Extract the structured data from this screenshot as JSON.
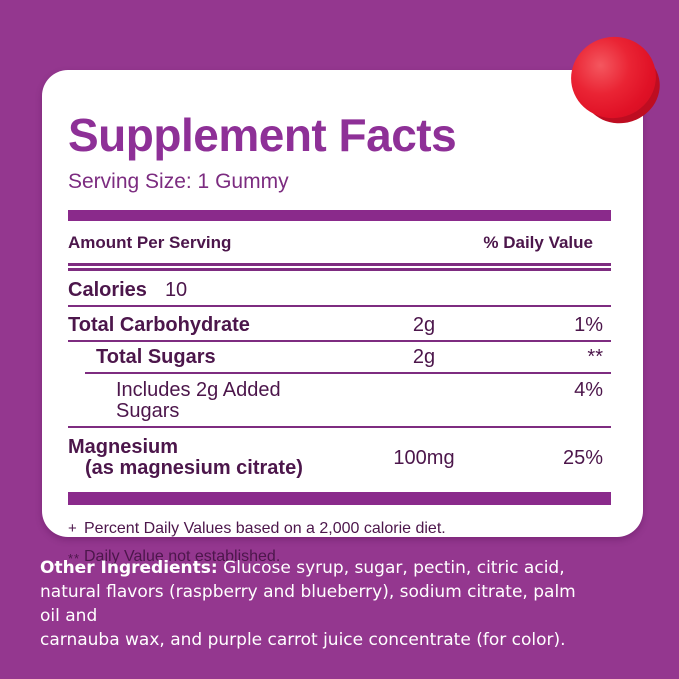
{
  "colors": {
    "background": "#94378F",
    "accent_bar": "#8A2A8B",
    "rule_line": "#7E2C80",
    "title": "#8E3097",
    "text_dark": "#4C164B",
    "card": "#FFFFFF",
    "gummy_red": "#E01126"
  },
  "panel": {
    "title": "Supplement Facts",
    "serving_size": "Serving Size: 1 Gummy",
    "header": {
      "amount": "Amount Per Serving",
      "daily_value": "% Daily Value"
    },
    "calories": {
      "label": "Calories",
      "value": "10"
    },
    "rows": [
      {
        "name": "Total Carbohydrate",
        "amount": "2g",
        "dv": "1%"
      },
      {
        "name": "Total Sugars",
        "amount": "2g",
        "dv": "**"
      },
      {
        "name": "Includes 2g Added Sugars",
        "amount": "",
        "dv": "4%"
      },
      {
        "name": "Magnesium",
        "sub": "(as magnesium citrate)",
        "amount": "100mg",
        "dv": "25%"
      }
    ],
    "footnotes": [
      {
        "marker": "+",
        "text": "Percent Daily Values based on a 2,000 calorie diet."
      },
      {
        "marker": "**",
        "text": "Daily Value not established."
      }
    ]
  },
  "other_ingredients": {
    "label": "Other Ingredients:",
    "line1_rest": " Glucose syrup, sugar, pectin, citric acid,",
    "line2": "natural flavors (raspberry and blueberry), sodium citrate, palm oil and",
    "line3": "carnauba wax, and purple carrot juice concentrate (for color)."
  },
  "decoration": {
    "gummy": "red-gummy"
  }
}
